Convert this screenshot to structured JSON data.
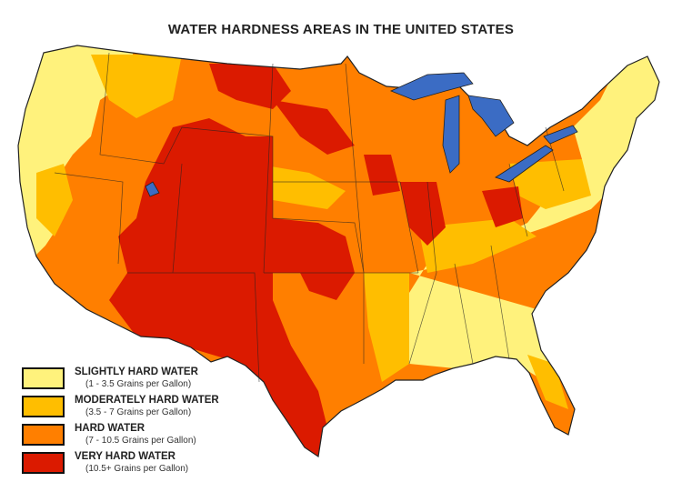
{
  "title": "WATER HARDNESS AREAS IN THE UNITED STATES",
  "colors": {
    "lakes": "#3b6cc4",
    "border": "#222222"
  },
  "legend": [
    {
      "label": "SLIGHTLY HARD WATER",
      "range": "(1 - 3.5 Grains per Gallon)",
      "color": "#fff27c"
    },
    {
      "label": "MODERATELY HARD WATER",
      "range": "(3.5 - 7 Grains per Gallon)",
      "color": "#ffbe00"
    },
    {
      "label": "HARD WATER",
      "range": "(7 - 10.5 Grains per Gallon)",
      "color": "#ff7f00"
    },
    {
      "label": "VERY HARD WATER",
      "range": "(10.5+ Grains per Gallon)",
      "color": "#db1a00"
    }
  ]
}
